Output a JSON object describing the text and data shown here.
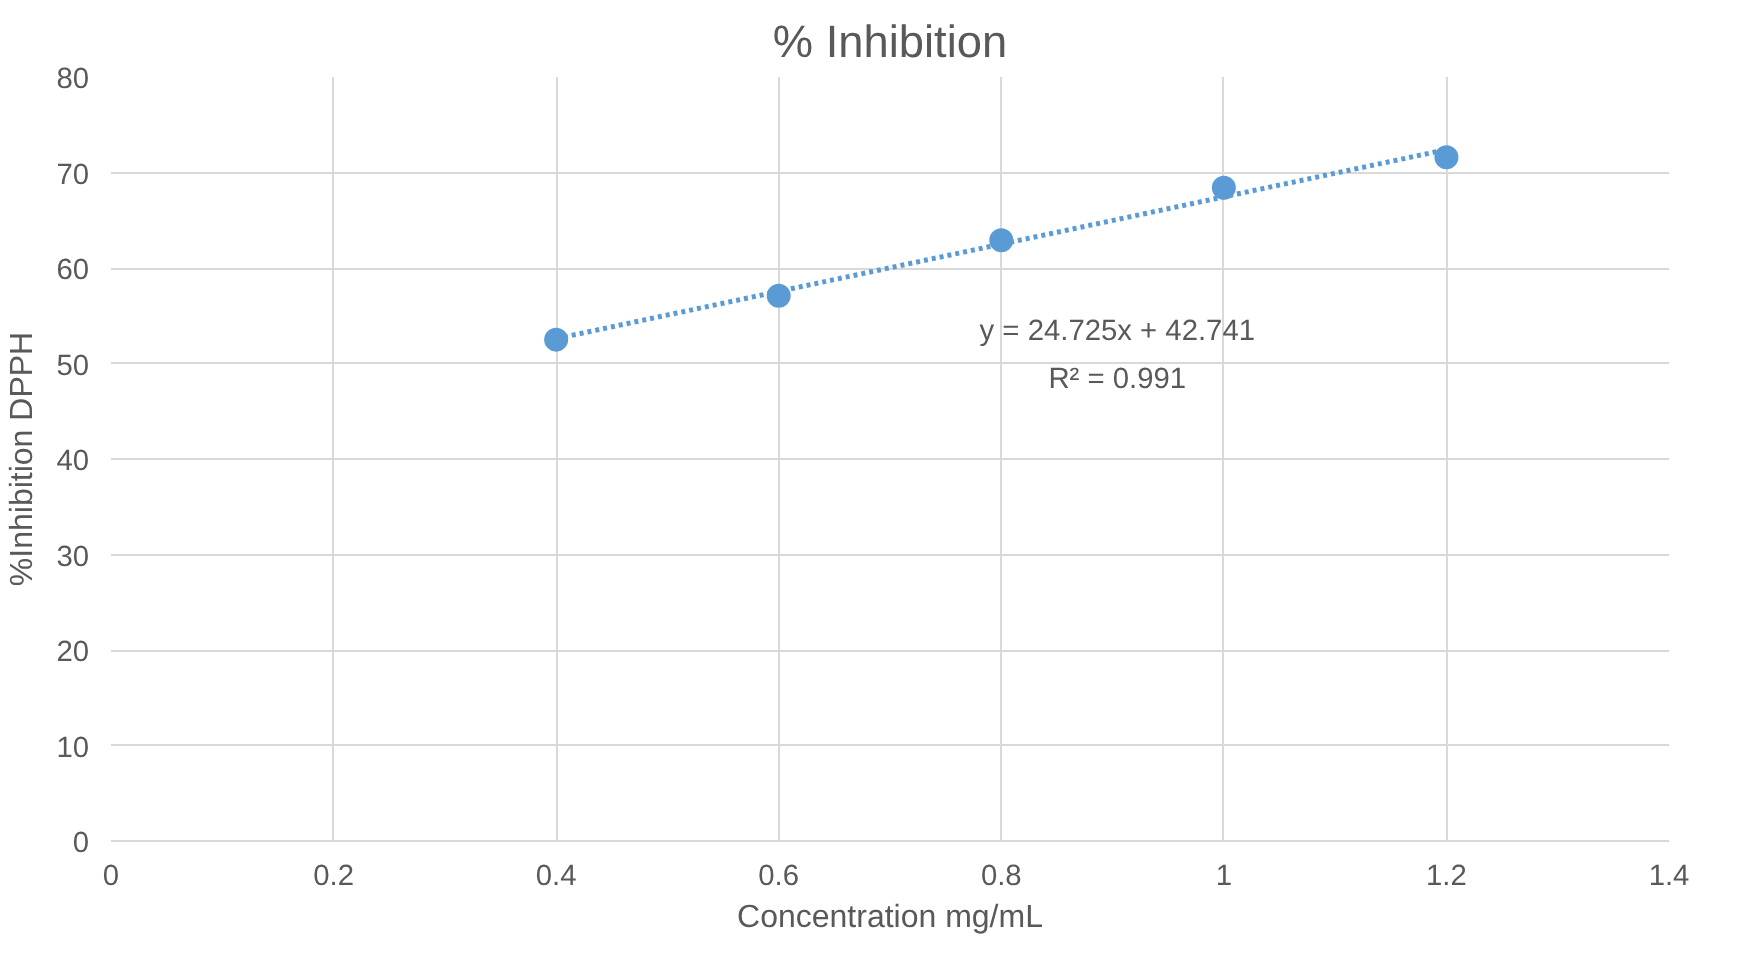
{
  "chart_data": {
    "type": "scatter",
    "title": "% Inhibition",
    "xlabel": "Concentration mg/mL",
    "ylabel": "%Inhibition DPPH",
    "x": [
      0.4,
      0.6,
      0.8,
      1.0,
      1.2
    ],
    "series": [
      {
        "color": "#5b9bd5",
        "values": [
          52.5,
          57.1,
          62.9,
          68.4,
          71.6
        ],
        "marker": "circle"
      },
      {
        "type": "line",
        "color": "#5b9bd5",
        "x": [
          0.4,
          1.2
        ],
        "values": [
          52.6,
          72.4
        ],
        "line_style": "dotted",
        "marker": "none"
      }
    ],
    "annotations": [
      "y = 24.725x + 42.741",
      "R² = 0.991"
    ],
    "xlim": [
      0,
      1.4
    ],
    "xticks": [
      0,
      0.2,
      0.4,
      0.6,
      0.8,
      1,
      1.2,
      1.4
    ],
    "ylim": [
      0,
      80
    ],
    "yticks": [
      0,
      10,
      20,
      30,
      40,
      50,
      60,
      70,
      80
    ],
    "grid": true
  }
}
